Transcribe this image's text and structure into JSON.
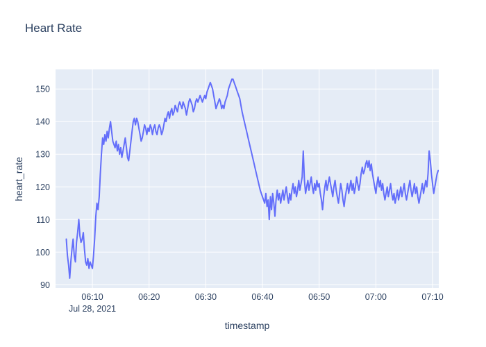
{
  "chart_data": {
    "type": "line",
    "title": "Heart Rate",
    "xlabel": "timestamp",
    "ylabel": "heart_rate",
    "date_label": "Jul 28, 2021",
    "x_encoding": "minutes after 06:00",
    "x_ticks": [
      {
        "v": 10,
        "label": "06:10"
      },
      {
        "v": 20,
        "label": "06:20"
      },
      {
        "v": 30,
        "label": "06:30"
      },
      {
        "v": 40,
        "label": "06:40"
      },
      {
        "v": 50,
        "label": "06:50"
      },
      {
        "v": 60,
        "label": "07:00"
      },
      {
        "v": 70,
        "label": "07:10"
      }
    ],
    "y_ticks": [
      90,
      100,
      110,
      120,
      130,
      140,
      150
    ],
    "x_range": [
      3.5,
      71.1
    ],
    "y_range": [
      89,
      156
    ],
    "line_color": "#636efa",
    "plot_bg": "#e5ecf6",
    "grid_color": "#ffffff",
    "text_color": "#2a3f5f",
    "legend": "none",
    "grid": "on",
    "points": [
      [
        5.4,
        104
      ],
      [
        5.6,
        99
      ],
      [
        5.8,
        96
      ],
      [
        6,
        92
      ],
      [
        6.2,
        97
      ],
      [
        6.4,
        101
      ],
      [
        6.6,
        104
      ],
      [
        6.8,
        99
      ],
      [
        7,
        97
      ],
      [
        7.2,
        103
      ],
      [
        7.4,
        106
      ],
      [
        7.6,
        110
      ],
      [
        7.8,
        105
      ],
      [
        8,
        103
      ],
      [
        8.2,
        104
      ],
      [
        8.4,
        106
      ],
      [
        8.6,
        101
      ],
      [
        8.8,
        97
      ],
      [
        9,
        96
      ],
      [
        9.2,
        98
      ],
      [
        9.4,
        95
      ],
      [
        9.6,
        97
      ],
      [
        9.8,
        96
      ],
      [
        10,
        95
      ],
      [
        10.2,
        99
      ],
      [
        10.4,
        104
      ],
      [
        10.6,
        111
      ],
      [
        10.8,
        115
      ],
      [
        11,
        113
      ],
      [
        11.2,
        117
      ],
      [
        11.4,
        124
      ],
      [
        11.6,
        130
      ],
      [
        11.8,
        135
      ],
      [
        12,
        133
      ],
      [
        12.2,
        136
      ],
      [
        12.4,
        134
      ],
      [
        12.6,
        137
      ],
      [
        12.8,
        135
      ],
      [
        13,
        138
      ],
      [
        13.2,
        140
      ],
      [
        13.4,
        137
      ],
      [
        13.6,
        134
      ],
      [
        13.8,
        133
      ],
      [
        14,
        132
      ],
      [
        14.2,
        134
      ],
      [
        14.4,
        131
      ],
      [
        14.6,
        133
      ],
      [
        14.8,
        130
      ],
      [
        15,
        132
      ],
      [
        15.2,
        129
      ],
      [
        15.4,
        131
      ],
      [
        15.6,
        133
      ],
      [
        15.8,
        135
      ],
      [
        16,
        132
      ],
      [
        16.2,
        129
      ],
      [
        16.4,
        128
      ],
      [
        16.6,
        131
      ],
      [
        16.8,
        134
      ],
      [
        17,
        137
      ],
      [
        17.2,
        140
      ],
      [
        17.4,
        141
      ],
      [
        17.6,
        139
      ],
      [
        17.8,
        141
      ],
      [
        18,
        140
      ],
      [
        18.2,
        138
      ],
      [
        18.4,
        136
      ],
      [
        18.6,
        134
      ],
      [
        18.8,
        135
      ],
      [
        19,
        137
      ],
      [
        19.2,
        139
      ],
      [
        19.4,
        138
      ],
      [
        19.6,
        136
      ],
      [
        19.8,
        138
      ],
      [
        20,
        137
      ],
      [
        20.2,
        139
      ],
      [
        20.4,
        138
      ],
      [
        20.6,
        136
      ],
      [
        20.8,
        138
      ],
      [
        21,
        139
      ],
      [
        21.2,
        137
      ],
      [
        21.4,
        136
      ],
      [
        21.6,
        138
      ],
      [
        21.8,
        139
      ],
      [
        22,
        138
      ],
      [
        22.2,
        136
      ],
      [
        22.4,
        137
      ],
      [
        22.6,
        139
      ],
      [
        22.8,
        141
      ],
      [
        23,
        140
      ],
      [
        23.2,
        142
      ],
      [
        23.4,
        143
      ],
      [
        23.6,
        141
      ],
      [
        23.8,
        143
      ],
      [
        24,
        144
      ],
      [
        24.2,
        142
      ],
      [
        24.4,
        143
      ],
      [
        24.6,
        145
      ],
      [
        24.8,
        144
      ],
      [
        25,
        143
      ],
      [
        25.2,
        145
      ],
      [
        25.4,
        146
      ],
      [
        25.6,
        145
      ],
      [
        25.8,
        144
      ],
      [
        26,
        146
      ],
      [
        26.2,
        145
      ],
      [
        26.4,
        144
      ],
      [
        26.6,
        142
      ],
      [
        26.8,
        144
      ],
      [
        27,
        146
      ],
      [
        27.2,
        147
      ],
      [
        27.4,
        146
      ],
      [
        27.6,
        145
      ],
      [
        27.8,
        143
      ],
      [
        28,
        144
      ],
      [
        28.2,
        146
      ],
      [
        28.4,
        147
      ],
      [
        28.6,
        146
      ],
      [
        28.8,
        147
      ],
      [
        29,
        148
      ],
      [
        29.2,
        147
      ],
      [
        29.4,
        146
      ],
      [
        29.6,
        147
      ],
      [
        29.8,
        148
      ],
      [
        30,
        147
      ],
      [
        30.2,
        149
      ],
      [
        30.4,
        150
      ],
      [
        30.6,
        151
      ],
      [
        30.8,
        152
      ],
      [
        31,
        151
      ],
      [
        31.2,
        150
      ],
      [
        31.4,
        148
      ],
      [
        31.6,
        146
      ],
      [
        31.8,
        144
      ],
      [
        32,
        145
      ],
      [
        32.2,
        146
      ],
      [
        32.4,
        147
      ],
      [
        32.6,
        146
      ],
      [
        32.8,
        144
      ],
      [
        33,
        145
      ],
      [
        33.2,
        144
      ],
      [
        33.4,
        146
      ],
      [
        33.6,
        147
      ],
      [
        33.8,
        148
      ],
      [
        34,
        150
      ],
      [
        34.2,
        151
      ],
      [
        34.4,
        152
      ],
      [
        34.6,
        153
      ],
      [
        34.8,
        153
      ],
      [
        35,
        152
      ],
      [
        35.2,
        151
      ],
      [
        35.4,
        150
      ],
      [
        35.6,
        149
      ],
      [
        35.8,
        148
      ],
      [
        36,
        147
      ],
      [
        36.2,
        145
      ],
      [
        36.4,
        143
      ],
      [
        36.8,
        140
      ],
      [
        37.2,
        137
      ],
      [
        37.6,
        134
      ],
      [
        38,
        131
      ],
      [
        38.4,
        128
      ],
      [
        38.8,
        125
      ],
      [
        39.2,
        122
      ],
      [
        39.6,
        119
      ],
      [
        40,
        117
      ],
      [
        40.4,
        115
      ],
      [
        40.6,
        118
      ],
      [
        40.8,
        114
      ],
      [
        41,
        116
      ],
      [
        41.2,
        110
      ],
      [
        41.4,
        117
      ],
      [
        41.6,
        113
      ],
      [
        41.8,
        118
      ],
      [
        42,
        115
      ],
      [
        42.2,
        111
      ],
      [
        42.4,
        116
      ],
      [
        42.6,
        119
      ],
      [
        42.8,
        116
      ],
      [
        43,
        118
      ],
      [
        43.2,
        115
      ],
      [
        43.4,
        117
      ],
      [
        43.6,
        119
      ],
      [
        43.8,
        116
      ],
      [
        44,
        118
      ],
      [
        44.2,
        120
      ],
      [
        44.4,
        117
      ],
      [
        44.6,
        115
      ],
      [
        44.8,
        118
      ],
      [
        45,
        116
      ],
      [
        45.2,
        119
      ],
      [
        45.4,
        121
      ],
      [
        45.6,
        118
      ],
      [
        45.8,
        120
      ],
      [
        46,
        117
      ],
      [
        46.2,
        119
      ],
      [
        46.4,
        122
      ],
      [
        46.6,
        119
      ],
      [
        46.8,
        121
      ],
      [
        47,
        123
      ],
      [
        47.2,
        131
      ],
      [
        47.4,
        122
      ],
      [
        47.6,
        118
      ],
      [
        47.8,
        120
      ],
      [
        48,
        122
      ],
      [
        48.2,
        119
      ],
      [
        48.4,
        121
      ],
      [
        48.6,
        123
      ],
      [
        48.8,
        120
      ],
      [
        49,
        118
      ],
      [
        49.2,
        121
      ],
      [
        49.4,
        119
      ],
      [
        49.6,
        122
      ],
      [
        49.8,
        120
      ],
      [
        50,
        121
      ],
      [
        50.2,
        118
      ],
      [
        50.4,
        116
      ],
      [
        50.6,
        113
      ],
      [
        50.8,
        117
      ],
      [
        51,
        120
      ],
      [
        51.2,
        122
      ],
      [
        51.4,
        119
      ],
      [
        51.6,
        121
      ],
      [
        51.8,
        123
      ],
      [
        52,
        121
      ],
      [
        52.2,
        119
      ],
      [
        52.4,
        117
      ],
      [
        52.6,
        120
      ],
      [
        52.8,
        122
      ],
      [
        53,
        119
      ],
      [
        53.2,
        117
      ],
      [
        53.4,
        115
      ],
      [
        53.6,
        118
      ],
      [
        53.8,
        121
      ],
      [
        54,
        119
      ],
      [
        54.2,
        116
      ],
      [
        54.4,
        114
      ],
      [
        54.6,
        117
      ],
      [
        54.8,
        119
      ],
      [
        55,
        121
      ],
      [
        55.2,
        118
      ],
      [
        55.4,
        120
      ],
      [
        55.6,
        122
      ],
      [
        55.8,
        119
      ],
      [
        56,
        121
      ],
      [
        56.2,
        118
      ],
      [
        56.4,
        120
      ],
      [
        56.6,
        123
      ],
      [
        56.8,
        121
      ],
      [
        57,
        119
      ],
      [
        57.2,
        121
      ],
      [
        57.4,
        124
      ],
      [
        57.6,
        126
      ],
      [
        57.8,
        124
      ],
      [
        58,
        125
      ],
      [
        58.2,
        127
      ],
      [
        58.4,
        128
      ],
      [
        58.6,
        126
      ],
      [
        58.8,
        128
      ],
      [
        59,
        125
      ],
      [
        59.2,
        127
      ],
      [
        59.4,
        124
      ],
      [
        59.6,
        122
      ],
      [
        59.8,
        120
      ],
      [
        60,
        118
      ],
      [
        60.2,
        121
      ],
      [
        60.4,
        123
      ],
      [
        60.6,
        120
      ],
      [
        60.8,
        122
      ],
      [
        61,
        119
      ],
      [
        61.2,
        121
      ],
      [
        61.4,
        118
      ],
      [
        61.6,
        116
      ],
      [
        61.8,
        118
      ],
      [
        62,
        120
      ],
      [
        62.2,
        117
      ],
      [
        62.4,
        119
      ],
      [
        62.6,
        121
      ],
      [
        62.8,
        118
      ],
      [
        63,
        116
      ],
      [
        63.2,
        118
      ],
      [
        63.4,
        115
      ],
      [
        63.6,
        117
      ],
      [
        63.8,
        119
      ],
      [
        64,
        116
      ],
      [
        64.2,
        118
      ],
      [
        64.4,
        120
      ],
      [
        64.6,
        117
      ],
      [
        64.8,
        119
      ],
      [
        65,
        121
      ],
      [
        65.2,
        118
      ],
      [
        65.4,
        116
      ],
      [
        65.6,
        118
      ],
      [
        65.8,
        120
      ],
      [
        66,
        122
      ],
      [
        66.2,
        119
      ],
      [
        66.4,
        117
      ],
      [
        66.6,
        119
      ],
      [
        66.8,
        121
      ],
      [
        67,
        118
      ],
      [
        67.2,
        120
      ],
      [
        67.4,
        117
      ],
      [
        67.6,
        115
      ],
      [
        67.8,
        117
      ],
      [
        68,
        119
      ],
      [
        68.2,
        121
      ],
      [
        68.4,
        118
      ],
      [
        68.6,
        120
      ],
      [
        68.8,
        122
      ],
      [
        69,
        120
      ],
      [
        69.2,
        124
      ],
      [
        69.4,
        131
      ],
      [
        69.6,
        128
      ],
      [
        69.8,
        124
      ],
      [
        70,
        121
      ],
      [
        70.2,
        118
      ],
      [
        70.4,
        120
      ],
      [
        70.6,
        122
      ],
      [
        70.8,
        124
      ],
      [
        71,
        125
      ]
    ]
  }
}
